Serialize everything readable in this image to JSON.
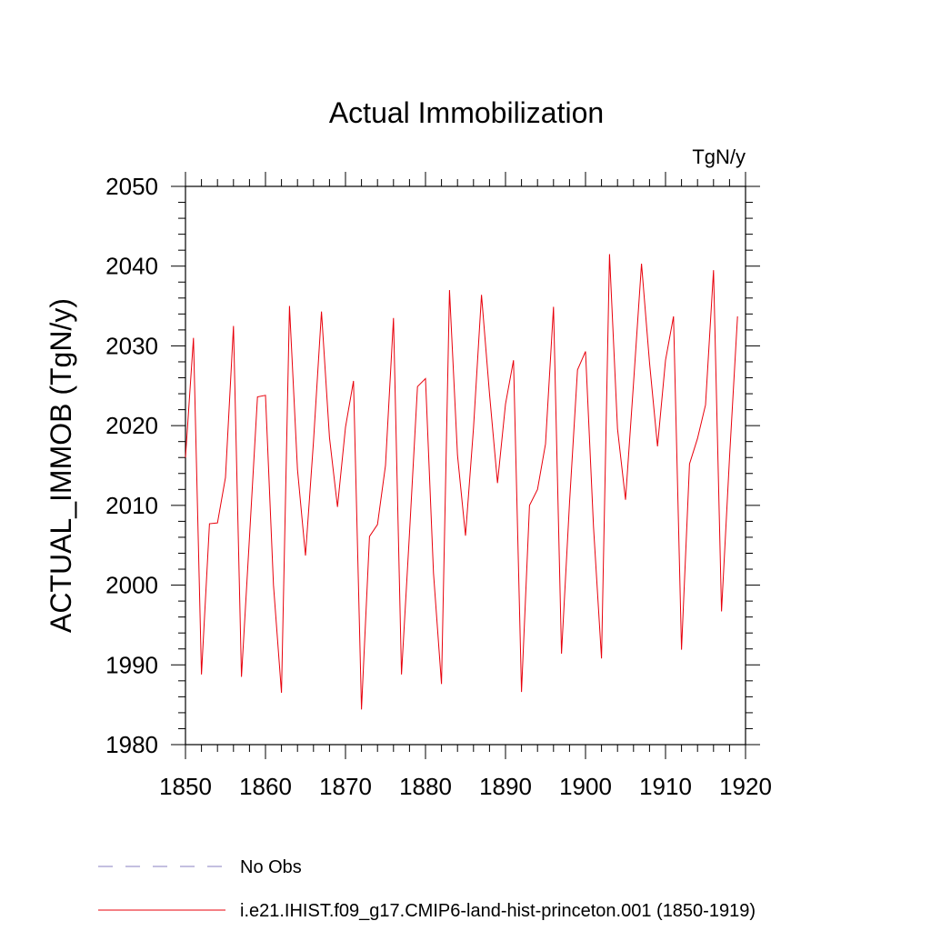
{
  "chart_data": {
    "type": "line",
    "title": "Actual Immobilization",
    "units_label": "TgN/y",
    "ylabel": "ACTUAL_IMMOB  (TgN/y)",
    "xlabel": "",
    "xlim": [
      1850,
      1920
    ],
    "ylim": [
      1980,
      2050
    ],
    "x_ticks": [
      1850,
      1860,
      1870,
      1880,
      1890,
      1900,
      1910,
      1920
    ],
    "y_ticks": [
      1980,
      1990,
      2000,
      2010,
      2020,
      2030,
      2040,
      2050
    ],
    "grid": false,
    "legend_position": "bottom-left",
    "series": [
      {
        "name": "No Obs",
        "color": "#8a7fc0",
        "dash": "dashed",
        "values": []
      },
      {
        "name": "i.e21.IHIST.f09_g17.CMIP6-land-hist-princeton.001 (1850-1919)",
        "color": "#e8000b",
        "dash": "solid",
        "x": [
          1850,
          1851,
          1852,
          1853,
          1854,
          1855,
          1856,
          1857,
          1858,
          1859,
          1860,
          1861,
          1862,
          1863,
          1864,
          1865,
          1866,
          1867,
          1868,
          1869,
          1870,
          1871,
          1872,
          1873,
          1874,
          1875,
          1876,
          1877,
          1878,
          1879,
          1880,
          1881,
          1882,
          1883,
          1884,
          1885,
          1886,
          1887,
          1888,
          1889,
          1890,
          1891,
          1892,
          1893,
          1894,
          1895,
          1896,
          1897,
          1898,
          1899,
          1900,
          1901,
          1902,
          1903,
          1904,
          1905,
          1906,
          1907,
          1908,
          1909,
          1910,
          1911,
          1912,
          1913,
          1914,
          1915,
          1916,
          1917,
          1918,
          1919
        ],
        "values": [
          2016.0,
          2031.0,
          1988.8,
          2007.7,
          2007.8,
          2013.5,
          2032.5,
          1988.5,
          2006.0,
          2023.6,
          2023.8,
          2000.0,
          1986.5,
          2035.0,
          2014.5,
          2003.7,
          2018.0,
          2034.3,
          2018.5,
          2009.8,
          2019.8,
          2025.6,
          1984.4,
          2006.1,
          2007.6,
          2015.0,
          2033.5,
          1988.8,
          2006.5,
          2024.9,
          2025.9,
          2001.5,
          1987.6,
          2037.0,
          2016.3,
          2006.2,
          2019.7,
          2036.4,
          2024.0,
          2012.8,
          2022.7,
          2028.2,
          1986.6,
          2010.0,
          2012.0,
          2017.7,
          2034.9,
          1991.4,
          2010.3,
          2027.0,
          2029.3,
          2007.3,
          1990.8,
          2041.5,
          2019.6,
          2010.7,
          2025.3,
          2040.3,
          2027.9,
          2017.4,
          2028.2,
          2033.7,
          1991.9,
          2015.2,
          2018.4,
          2022.6,
          2039.5,
          1996.7,
          2016.0,
          2033.7
        ]
      }
    ]
  }
}
